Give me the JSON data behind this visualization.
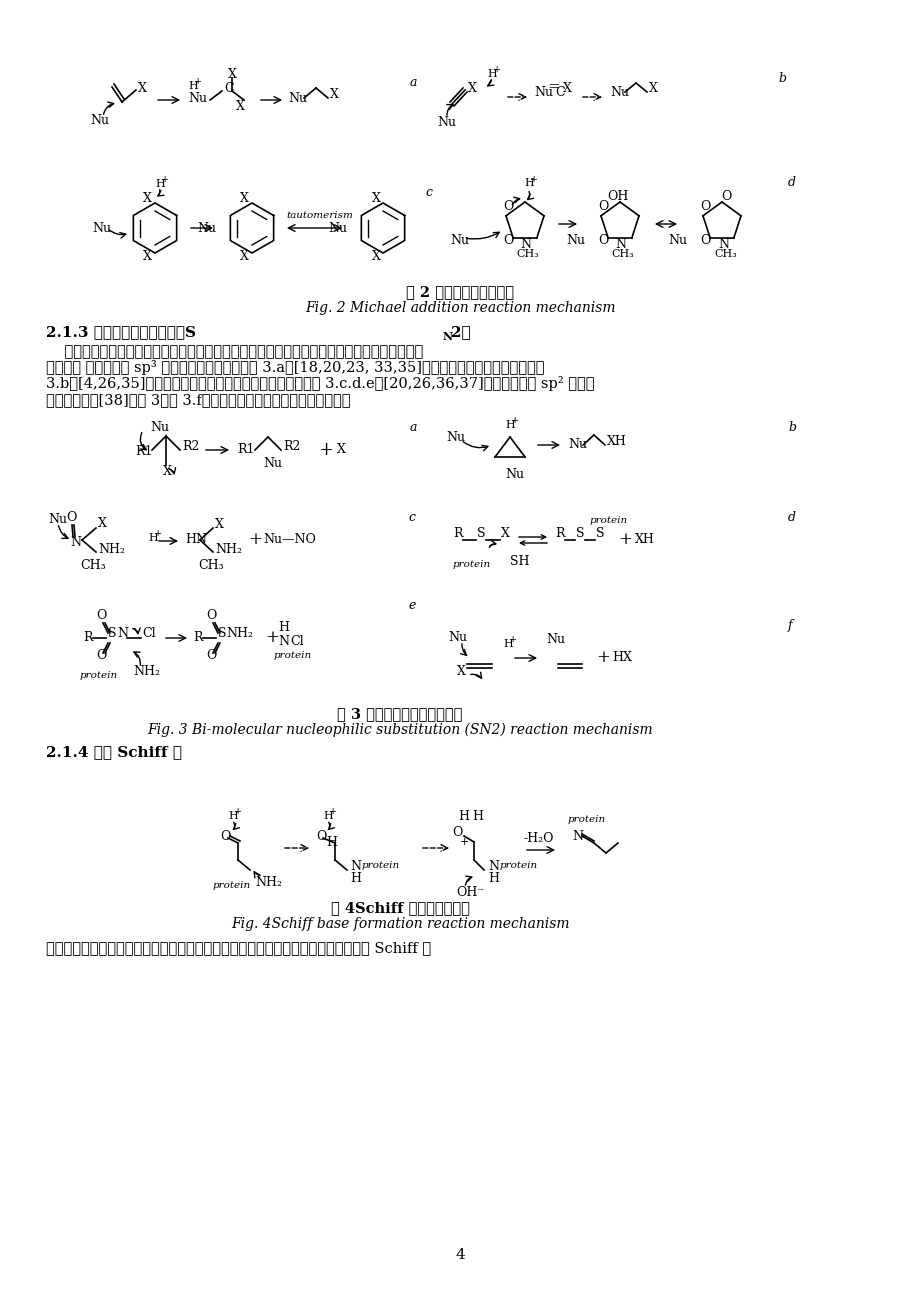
{
  "page_width": 9.2,
  "page_height": 13.02,
  "dpi": 100,
  "background_color": "#ffffff",
  "fig2_caption_cn": "图 2 迈克尔加成反应历程",
  "fig2_caption_en": "Fig. 2 Michael addition reaction mechanism",
  "section213_title": "2.1.3 双分子亲核取代反应（S",
  "section213_sub": "N",
  "section213_end": "2）",
  "body_lines": [
    "    亲核试剂攻击连接了离去基团的脂肪族碳、氮、硫或卤素原子而发生的反应。主要有以下几种",
    "反应类型 含有反应性 sp³ 杂化碳原子的有机物（图 3.a）[18,20,23, 33,35]、具有强环内张力的环系统（图",
    "3.b）[4,26,35]、含有反应性氮、硫和卤素原子的有机物（图 3.c.d.e）[20,26,36,37]、含有反应性 sp² 杂化碳",
    "原子的有机物[38]。图 3（图 3.f）为双分子亲核取代反应历程示意图。"
  ],
  "fig3_caption_cn": "图 3 双分子亲核取代反应历程",
  "fig3_caption_en": "Fig. 3 Bi-molecular nucleophilic substitution (S",
  "fig3_caption_en_sub": "N",
  "fig3_caption_en_end": "2) reaction mechanism",
  "section214_title": "2.1.4 形成 Schiff 碱",
  "fig4_caption_cn": "图 4Schiff 碱形成反应历程",
  "fig4_caption_en": "Fig. 4Schiff base formation reaction mechanism",
  "bottom_text": "蛋白质中的氨基攻击反应性羰基，与羰基上的碳形成亚氨基中间体，并迅速脱水形成 Schiff 碱",
  "page_num": "4"
}
